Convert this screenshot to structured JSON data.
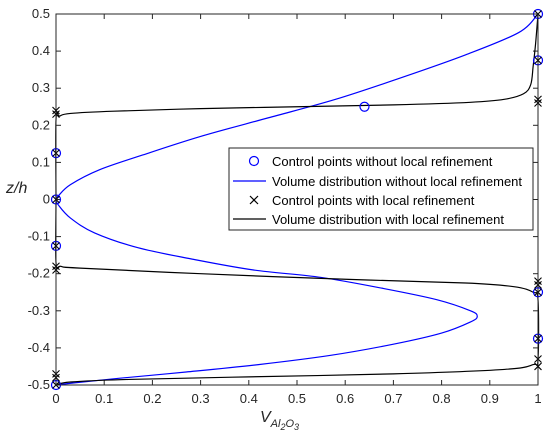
{
  "chart_data": {
    "type": "line",
    "title": "",
    "xlabel": {
      "base": "V",
      "sub1": "Al",
      "sub2": "2",
      "sub3": "O",
      "sub4": "3"
    },
    "ylabel": "z/h",
    "xlim": [
      0,
      1
    ],
    "ylim": [
      -0.5,
      0.5
    ],
    "xticks": [
      "0",
      "0.1",
      "0.2",
      "0.3",
      "0.4",
      "0.5",
      "0.6",
      "0.7",
      "0.8",
      "0.9",
      "1"
    ],
    "yticks": [
      "-0.5",
      "-0.4",
      "-0.3",
      "-0.2",
      "-0.1",
      "0",
      "0.1",
      "0.2",
      "0.3",
      "0.4",
      "0.5"
    ],
    "grid": false,
    "legend_position": "center-right",
    "legend": [
      "Control points without local refinement",
      "Volume distribution without local refinement",
      "Control points with local refinement",
      "Volume distribution with local refinement"
    ],
    "series": [
      {
        "name": "Control points without local refinement",
        "kind": "scatter",
        "marker": "circle",
        "color": "#0000ff",
        "points": [
          [
            1,
            0.5
          ],
          [
            0.64,
            0.25
          ],
          [
            1,
            0.375
          ],
          [
            0,
            0.125
          ],
          [
            0,
            0
          ],
          [
            0,
            -0.125
          ],
          [
            1,
            -0.25
          ],
          [
            1,
            -0.375
          ],
          [
            0,
            -0.5
          ]
        ]
      },
      {
        "name": "Volume distribution without local refinement",
        "kind": "line",
        "color": "#0000ff",
        "points": [
          [
            1,
            0.5
          ],
          [
            0.96,
            0.45
          ],
          [
            0.85,
            0.39
          ],
          [
            0.72,
            0.33
          ],
          [
            0.58,
            0.27
          ],
          [
            0.44,
            0.22
          ],
          [
            0.3,
            0.17
          ],
          [
            0.18,
            0.12
          ],
          [
            0.09,
            0.08
          ],
          [
            0.03,
            0.04
          ],
          [
            0.005,
            0.01
          ],
          [
            0,
            0
          ],
          [
            0.005,
            -0.015
          ],
          [
            0.03,
            -0.05
          ],
          [
            0.08,
            -0.09
          ],
          [
            0.17,
            -0.13
          ],
          [
            0.28,
            -0.16
          ],
          [
            0.41,
            -0.19
          ],
          [
            0.55,
            -0.21
          ],
          [
            0.68,
            -0.24
          ],
          [
            0.79,
            -0.27
          ],
          [
            0.86,
            -0.3
          ],
          [
            0.874,
            -0.315
          ],
          [
            0.86,
            -0.33
          ],
          [
            0.8,
            -0.36
          ],
          [
            0.7,
            -0.39
          ],
          [
            0.57,
            -0.42
          ],
          [
            0.42,
            -0.445
          ],
          [
            0.27,
            -0.465
          ],
          [
            0.13,
            -0.482
          ],
          [
            0.04,
            -0.494
          ],
          [
            0,
            -0.5
          ]
        ]
      },
      {
        "name": "Control points with local refinement",
        "kind": "scatter",
        "marker": "x",
        "color": "#000000",
        "points": [
          [
            1,
            0.5
          ],
          [
            1,
            0.375
          ],
          [
            1,
            0.27
          ],
          [
            1,
            0.26
          ],
          [
            0,
            0.24
          ],
          [
            0,
            0.23
          ],
          [
            0,
            0.125
          ],
          [
            0,
            0
          ],
          [
            0,
            -0.125
          ],
          [
            0,
            -0.18
          ],
          [
            0,
            -0.19
          ],
          [
            1,
            -0.22
          ],
          [
            1,
            -0.23
          ],
          [
            1,
            -0.25
          ],
          [
            1,
            -0.375
          ],
          [
            1,
            -0.43
          ],
          [
            1,
            -0.45
          ],
          [
            0,
            -0.47
          ],
          [
            0,
            -0.48
          ],
          [
            0,
            -0.5
          ]
        ]
      },
      {
        "name": "Volume distribution with local refinement",
        "kind": "line",
        "color": "#000000",
        "points": [
          [
            1,
            0.5
          ],
          [
            0.995,
            0.42
          ],
          [
            0.99,
            0.36
          ],
          [
            0.985,
            0.31
          ],
          [
            0.97,
            0.285
          ],
          [
            0.93,
            0.27
          ],
          [
            0.86,
            0.262
          ],
          [
            0.7,
            0.255
          ],
          [
            0.5,
            0.25
          ],
          [
            0.3,
            0.245
          ],
          [
            0.12,
            0.238
          ],
          [
            0.03,
            0.232
          ],
          [
            0.008,
            0.225
          ],
          [
            0,
            0.215
          ],
          [
            0,
            0
          ],
          [
            0,
            -0.17
          ],
          [
            0.01,
            -0.18
          ],
          [
            0.05,
            -0.185
          ],
          [
            0.3,
            -0.2
          ],
          [
            0.6,
            -0.215
          ],
          [
            0.85,
            -0.225
          ],
          [
            0.95,
            -0.235
          ],
          [
            0.99,
            -0.25
          ],
          [
            1,
            -0.27
          ],
          [
            1,
            -0.43
          ],
          [
            0.99,
            -0.445
          ],
          [
            0.93,
            -0.458
          ],
          [
            0.7,
            -0.47
          ],
          [
            0.4,
            -0.478
          ],
          [
            0.15,
            -0.485
          ],
          [
            0.03,
            -0.492
          ],
          [
            0,
            -0.5
          ]
        ]
      }
    ]
  }
}
